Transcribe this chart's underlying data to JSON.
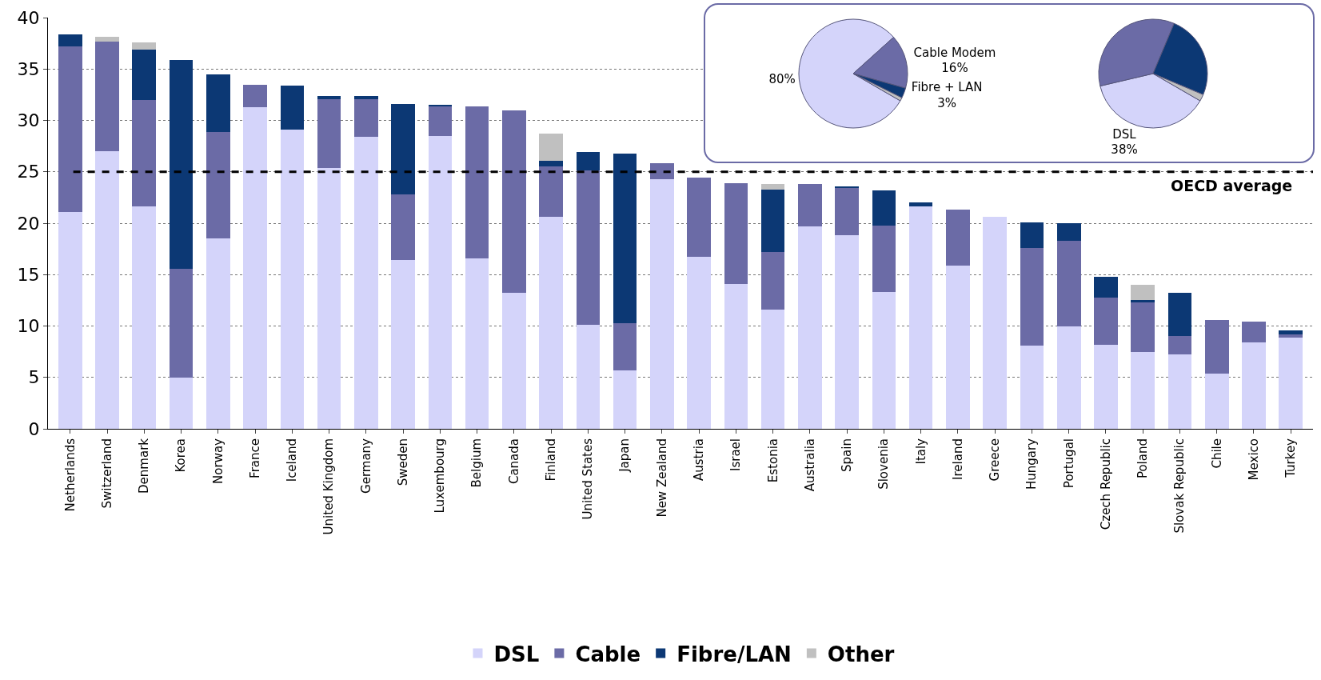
{
  "chart_data": [
    {
      "type": "bar",
      "stacked": true,
      "categories": [
        "Netherlands",
        "Switzerland",
        "Denmark",
        "Korea",
        "Norway",
        "France",
        "Iceland",
        "United Kingdom",
        "Germany",
        "Sweden",
        "Luxembourg",
        "Belgium",
        "Canada",
        "Finland",
        "United States",
        "Japan",
        "New Zealand",
        "Austria",
        "Israel",
        "Estonia",
        "Australia",
        "Spain",
        "Slovenia",
        "Italy",
        "Ireland",
        "Greece",
        "Hungary",
        "Portugal",
        "Czech Republic",
        "Poland",
        "Slovak Republic",
        "Chile",
        "Mexico",
        "Turkey"
      ],
      "series": [
        {
          "name": "DSL",
          "color": "#d4d4fa",
          "values": [
            21.1,
            27.0,
            21.6,
            5.0,
            18.5,
            31.3,
            29.1,
            25.4,
            28.4,
            16.4,
            28.5,
            16.6,
            13.2,
            20.6,
            10.1,
            5.7,
            24.3,
            16.7,
            14.1,
            11.6,
            19.7,
            18.8,
            13.3,
            21.6,
            15.9,
            20.6,
            8.1,
            10.0,
            8.2,
            7.5,
            7.2,
            5.4,
            8.4,
            8.9
          ]
        },
        {
          "name": "Cable",
          "color": "#6b6ba6",
          "values": [
            16.1,
            10.7,
            10.4,
            10.6,
            10.4,
            2.2,
            0,
            6.7,
            3.7,
            6.4,
            2.9,
            14.8,
            17.8,
            4.9,
            15.0,
            4.6,
            1.5,
            7.7,
            9.8,
            5.6,
            4.1,
            4.6,
            6.5,
            0,
            5.4,
            0,
            9.5,
            8.3,
            4.6,
            4.8,
            1.8,
            5.2,
            2.0,
            0.3
          ]
        },
        {
          "name": "Fibre/LAN",
          "color": "#0c3874",
          "values": [
            1.2,
            0,
            4.9,
            20.3,
            5.6,
            0,
            4.3,
            0.3,
            0.3,
            8.8,
            0.1,
            0,
            0,
            0.6,
            1.8,
            16.5,
            0,
            0,
            0,
            6.1,
            0,
            0.2,
            3.4,
            0.4,
            0,
            0,
            2.5,
            1.7,
            2.0,
            0.2,
            4.2,
            0,
            0,
            0.4
          ]
        },
        {
          "name": "Other",
          "color": "#c0c0c0",
          "values": [
            0,
            0.4,
            0.7,
            0,
            0,
            0,
            0,
            0,
            0,
            0,
            0,
            0,
            0,
            2.6,
            0,
            0,
            0,
            0,
            0,
            0.5,
            0,
            0,
            0,
            0,
            0,
            0,
            0,
            0,
            0,
            1.5,
            0,
            0,
            0,
            0
          ]
        }
      ],
      "ylim": [
        0,
        40
      ],
      "yticks": [
        0,
        5,
        10,
        15,
        20,
        25,
        30,
        35,
        40
      ],
      "grid": "y",
      "legend": "bottom",
      "ref_lines": [
        {
          "axis": "y",
          "value": 25,
          "label": "OECD average",
          "color": "#000000",
          "line_style": "dashed"
        }
      ]
    },
    {
      "type": "pie",
      "categories": [
        null,
        "Cable Modem",
        "Fibre + LAN",
        null
      ],
      "values": [
        80,
        16,
        3,
        1
      ],
      "colors": [
        "#d4d4fa",
        "#6b6ba6",
        "#0c3874",
        "#c0c0c0"
      ],
      "value_labels": [
        "80%",
        "16%",
        "3%",
        null
      ]
    },
    {
      "type": "pie",
      "categories": [
        "DSL",
        null,
        null,
        null
      ],
      "values": [
        38,
        35,
        25,
        2
      ],
      "colors": [
        "#d4d4fa",
        "#6b6ba6",
        "#0c3874",
        "#c0c0c0"
      ],
      "value_labels": [
        "38%",
        null,
        null,
        null
      ]
    }
  ]
}
